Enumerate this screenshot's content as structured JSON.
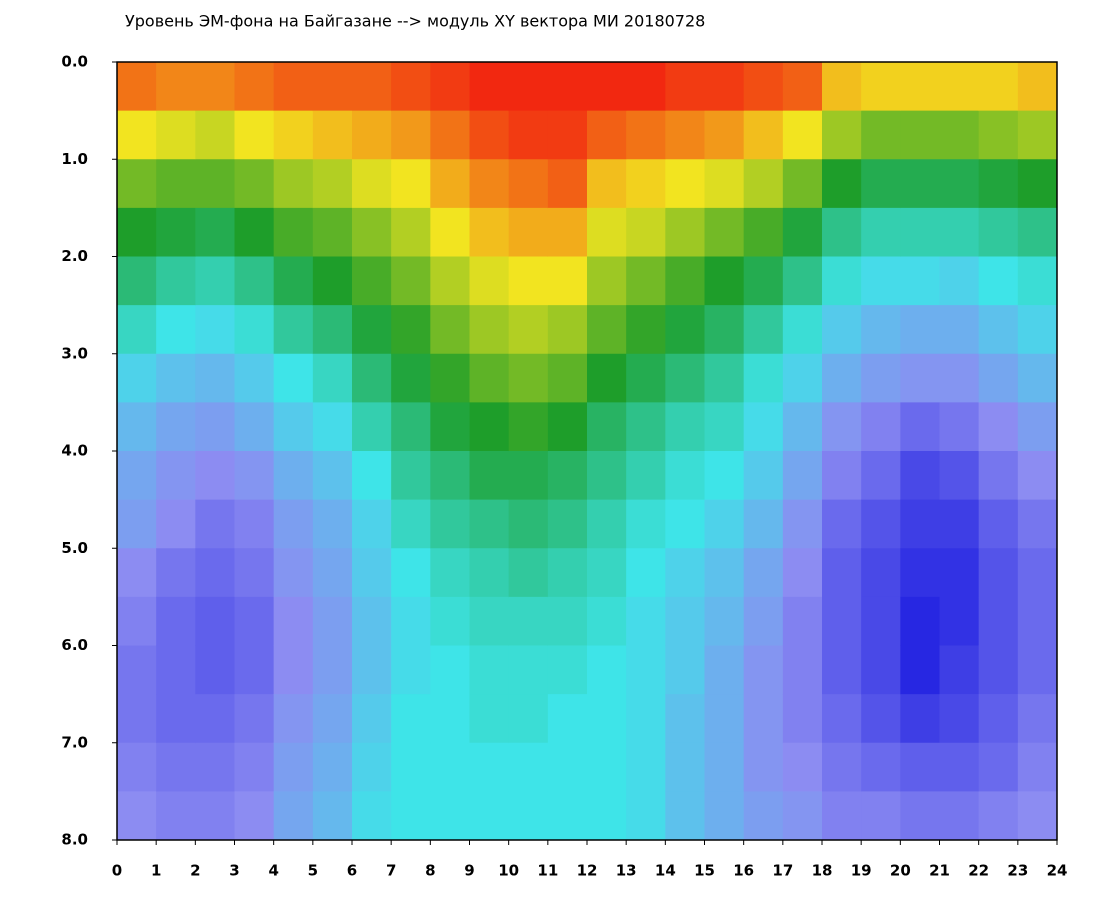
{
  "chart_data": {
    "type": "heatmap",
    "title": "Уровень ЭМ-фона на Байгазане  -->  модуль XY вектора МИ  20180728",
    "x": [
      0.5,
      1.5,
      2.5,
      3.5,
      4.5,
      5.5,
      6.5,
      7.5,
      8.5,
      9.5,
      10.5,
      11.5,
      12.5,
      13.5,
      14.5,
      15.5,
      16.5,
      17.5,
      18.5,
      19.5,
      20.5,
      21.5,
      22.5,
      23.5
    ],
    "y": [
      0.25,
      0.75,
      1.25,
      1.75,
      2.25,
      2.75,
      3.25,
      3.75,
      4.25,
      4.75,
      5.25,
      5.75,
      6.25,
      6.75,
      7.25,
      7.75
    ],
    "values": [
      [
        4.6,
        4.0,
        3.4,
        3.0,
        2.6,
        2.2,
        1.8,
        1.5,
        1.3,
        1.2,
        1.0,
        0.9,
        0.8,
        0.8,
        0.9,
        1.0
      ],
      [
        4.5,
        3.9,
        3.3,
        2.9,
        2.4,
        2.0,
        1.6,
        1.3,
        1.1,
        1.0,
        0.8,
        0.7,
        0.7,
        0.7,
        0.8,
        0.9
      ],
      [
        4.5,
        3.8,
        3.3,
        2.8,
        2.3,
        1.9,
        1.5,
        1.2,
        1.0,
        0.8,
        0.7,
        0.6,
        0.6,
        0.7,
        0.8,
        0.9
      ],
      [
        4.6,
        4.0,
        3.4,
        3.0,
        2.5,
        2.1,
        1.7,
        1.4,
        1.1,
        0.9,
        0.8,
        0.7,
        0.7,
        0.8,
        0.9,
        1.0
      ],
      [
        4.7,
        4.1,
        3.6,
        3.2,
        2.8,
        2.4,
        2.0,
        1.7,
        1.4,
        1.2,
        1.1,
        1.0,
        1.0,
        1.1,
        1.2,
        1.3
      ],
      [
        4.7,
        4.2,
        3.7,
        3.3,
        3.0,
        2.6,
        2.2,
        1.9,
        1.6,
        1.4,
        1.3,
        1.2,
        1.2,
        1.3,
        1.4,
        1.5
      ],
      [
        4.7,
        4.3,
        3.9,
        3.5,
        3.2,
        2.9,
        2.6,
        2.3,
        2.0,
        1.8,
        1.7,
        1.6,
        1.6,
        1.7,
        1.8,
        1.9
      ],
      [
        4.8,
        4.4,
        4.0,
        3.7,
        3.4,
        3.1,
        2.9,
        2.6,
        2.4,
        2.2,
        2.0,
        1.9,
        1.9,
        2.0,
        2.0,
        2.0
      ],
      [
        4.9,
        4.6,
        4.3,
        4.0,
        3.7,
        3.4,
        3.1,
        2.9,
        2.6,
        2.4,
        2.2,
        2.1,
        2.0,
        2.0,
        2.0,
        2.0
      ],
      [
        5.0,
        4.8,
        4.5,
        4.2,
        3.9,
        3.6,
        3.3,
        3.0,
        2.8,
        2.5,
        2.3,
        2.2,
        2.1,
        2.1,
        2.0,
        2.0
      ],
      [
        5.0,
        4.9,
        4.6,
        4.3,
        4.0,
        3.7,
        3.4,
        3.1,
        2.8,
        2.6,
        2.4,
        2.2,
        2.1,
        2.1,
        2.0,
        2.0
      ],
      [
        5.0,
        4.9,
        4.7,
        4.3,
        4.0,
        3.6,
        3.3,
        3.0,
        2.7,
        2.5,
        2.3,
        2.2,
        2.1,
        2.0,
        2.0,
        2.0
      ],
      [
        5.0,
        4.7,
        4.2,
        3.9,
        3.6,
        3.3,
        3.0,
        2.7,
        2.5,
        2.3,
        2.2,
        2.1,
        2.0,
        2.0,
        2.0,
        2.0
      ],
      [
        5.0,
        4.6,
        4.1,
        3.8,
        3.4,
        3.1,
        2.8,
        2.5,
        2.3,
        2.1,
        2.0,
        1.9,
        1.9,
        1.9,
        1.9,
        1.9
      ],
      [
        4.9,
        4.5,
        4.0,
        3.6,
        3.2,
        2.9,
        2.6,
        2.3,
        2.1,
        2.0,
        1.8,
        1.7,
        1.7,
        1.6,
        1.6,
        1.6
      ],
      [
        4.9,
        4.4,
        3.9,
        3.4,
        3.0,
        2.7,
        2.4,
        2.2,
        2.0,
        1.8,
        1.6,
        1.5,
        1.4,
        1.4,
        1.4,
        1.4
      ],
      [
        4.8,
        4.2,
        3.7,
        3.2,
        2.8,
        2.4,
        2.1,
        1.9,
        1.7,
        1.5,
        1.3,
        1.2,
        1.1,
        1.1,
        1.1,
        1.2
      ],
      [
        4.7,
        4.0,
        3.4,
        2.9,
        2.5,
        2.1,
        1.8,
        1.5,
        1.3,
        1.1,
        1.0,
        0.9,
        0.9,
        0.9,
        1.0,
        1.1
      ],
      [
        4.2,
        3.6,
        3.0,
        2.5,
        2.1,
        1.7,
        1.4,
        1.1,
        0.9,
        0.7,
        0.6,
        0.6,
        0.6,
        0.7,
        0.8,
        0.9
      ],
      [
        4.1,
        3.4,
        2.8,
        2.3,
        1.9,
        1.5,
        1.2,
        0.9,
        0.7,
        0.5,
        0.4,
        0.4,
        0.4,
        0.5,
        0.7,
        0.9
      ],
      [
        4.1,
        3.4,
        2.8,
        2.3,
        1.9,
        1.4,
        1.1,
        0.7,
        0.4,
        0.3,
        0.2,
        0.1,
        0.1,
        0.3,
        0.6,
        0.8
      ],
      [
        4.1,
        3.4,
        2.8,
        2.3,
        1.8,
        1.4,
        1.1,
        0.8,
        0.5,
        0.3,
        0.2,
        0.2,
        0.3,
        0.4,
        0.6,
        0.8
      ],
      [
        4.1,
        3.5,
        2.9,
        2.4,
        2.0,
        1.6,
        1.3,
        1.0,
        0.8,
        0.6,
        0.5,
        0.5,
        0.5,
        0.6,
        0.7,
        0.9
      ],
      [
        4.2,
        3.6,
        3.0,
        2.5,
        2.1,
        1.8,
        1.5,
        1.2,
        1.0,
        0.8,
        0.7,
        0.7,
        0.7,
        0.8,
        0.9,
        1.0
      ]
    ],
    "zlim": [
      0,
      5
    ],
    "colors": [
      "#1c1ce0",
      "#8c8cf2",
      "#3ee4e8",
      "#1e9e2a",
      "#f2e420",
      "#f22810"
    ],
    "xlim": [
      0,
      24
    ],
    "xticks": [
      0,
      1,
      2,
      3,
      4,
      5,
      6,
      7,
      8,
      9,
      10,
      11,
      12,
      13,
      14,
      15,
      16,
      17,
      18,
      19,
      20,
      21,
      22,
      23,
      24
    ],
    "ylim": [
      8,
      0
    ],
    "yticks": [
      {
        "value": 0,
        "label": "0.0"
      },
      {
        "value": 1,
        "label": "1.0"
      },
      {
        "value": 2,
        "label": "2.0"
      },
      {
        "value": 3,
        "label": "3.0"
      },
      {
        "value": 4,
        "label": "4.0"
      },
      {
        "value": 5,
        "label": "5.0"
      },
      {
        "value": 6,
        "label": "6.0"
      },
      {
        "value": 7,
        "label": "7.0"
      },
      {
        "value": 8,
        "label": "8.0"
      }
    ]
  }
}
